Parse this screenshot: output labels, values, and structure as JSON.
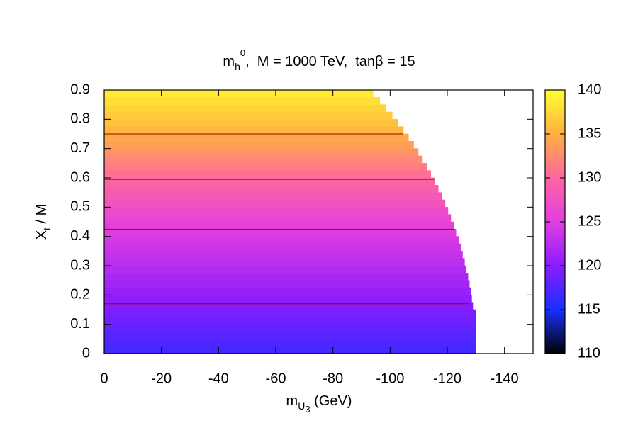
{
  "chart_data": {
    "type": "heatmap",
    "title": [
      {
        "text": "m"
      },
      {
        "text": "h",
        "shift": "sub"
      },
      {
        "text": "0",
        "shift": "subsup"
      },
      {
        "text": ",  M = 1000 TeV,  tanβ = 15"
      }
    ],
    "xlabel": [
      {
        "text": "m"
      },
      {
        "text": "U",
        "shift": "sub"
      },
      {
        "text": "3",
        "shift": "subsub"
      },
      {
        "text": " (GeV)"
      }
    ],
    "ylabel": [
      {
        "text": "X"
      },
      {
        "text": "t",
        "shift": "sub"
      },
      {
        "text": " / M"
      }
    ],
    "xlim": [
      0,
      -150
    ],
    "xticks": [
      0,
      -20,
      -40,
      -60,
      -80,
      -100,
      -120,
      -140
    ],
    "ylim": [
      0,
      0.9
    ],
    "yticks": [
      0,
      0.1,
      0.2,
      0.3,
      0.4,
      0.5,
      0.6,
      0.7,
      0.8,
      0.9
    ],
    "zlim": [
      110,
      140
    ],
    "zticks": [
      110,
      115,
      120,
      125,
      130,
      135,
      140
    ],
    "colormap": [
      "#000000",
      "#1830ff",
      "#8a1cff",
      "#e23ee0",
      "#ff66a0",
      "#ffb040",
      "#ffff30"
    ],
    "y_edges": [
      0,
      0.025,
      0.05,
      0.075,
      0.1,
      0.125,
      0.15,
      0.175,
      0.2,
      0.225,
      0.25,
      0.275,
      0.3,
      0.325,
      0.35,
      0.375,
      0.4,
      0.425,
      0.45,
      0.475,
      0.5,
      0.525,
      0.55,
      0.575,
      0.6,
      0.625,
      0.65,
      0.675,
      0.7,
      0.725,
      0.75,
      0.775,
      0.8,
      0.825,
      0.85,
      0.875,
      0.9
    ],
    "x_extent": [
      -130,
      -130,
      -130,
      -130,
      -130,
      -130,
      -129,
      -128.6,
      -128.2,
      -127.8,
      -127.3,
      -126.7,
      -126.1,
      -125.4,
      -124.7,
      -124.0,
      -123.1,
      -122.3,
      -121.3,
      -120.3,
      -119.3,
      -118.1,
      -116.9,
      -115.7,
      -114.3,
      -112.9,
      -111.4,
      -109.9,
      -108.3,
      -106.5,
      -104.7,
      -102.8,
      -100.8,
      -98.7,
      -96.5,
      -94.1
    ],
    "values": [
      116.8,
      117.3,
      117.8,
      118.3,
      118.8,
      119.3,
      119.8,
      120.3,
      120.8,
      121.3,
      121.8,
      122.3,
      122.8,
      123.3,
      123.8,
      124.3,
      124.8,
      125.4,
      126.1,
      126.8,
      127.6,
      128.3,
      129.0,
      129.8,
      130.6,
      131.4,
      132.2,
      133.0,
      133.8,
      134.6,
      135.3,
      136.0,
      136.7,
      137.3,
      138.0,
      138.7
    ],
    "contours": {
      "color": "#a00000",
      "y": [
        0.17,
        0.425,
        0.595,
        0.75
      ],
      "x_end": [
        -127.8,
        -122.6,
        -115.4,
        -104.5
      ]
    }
  }
}
